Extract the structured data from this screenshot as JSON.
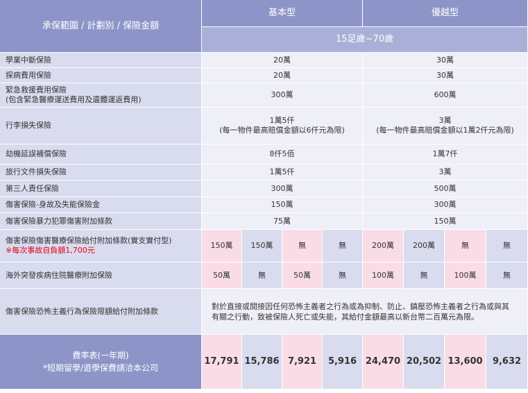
{
  "header": {
    "coverage_title": "承保範圍 / 計劃別 / 保險金額",
    "plan_basic": "基本型",
    "plan_premium": "優越型",
    "age_range": "15足歲~70歲"
  },
  "rows": [
    {
      "label": "學業中斷保險",
      "basic": "20萬",
      "premium": "30萬"
    },
    {
      "label": "探病費用保險",
      "basic": "20萬",
      "premium": "30萬"
    },
    {
      "label": "緊急救援費用保險",
      "label_sub": "(包含緊急醫療運送費用及遺體運返費用)",
      "basic": "300萬",
      "premium": "600萬"
    },
    {
      "label": "行李損失保險",
      "basic": "1萬5仟",
      "basic_sub": "(每一物件最高賠償金額以6仟元為限)",
      "premium": "3萬",
      "premium_sub": "(每一物件最高賠償金額以1萬2仟元為限)"
    },
    {
      "label": "劫機延誤補償保險",
      "basic": "8仟5佰",
      "premium": "1萬7仟"
    },
    {
      "label": "旅行文件損失保險",
      "basic": "1萬5仟",
      "premium": "3萬"
    },
    {
      "label": "第三人責任保險",
      "basic": "300萬",
      "premium": "500萬"
    },
    {
      "label": "傷害保險-身故及失能保險金",
      "basic": "150萬",
      "premium": "300萬"
    },
    {
      "label": "傷害保險暴力犯罪傷害附加條款",
      "basic": "75萬",
      "premium": "150萬"
    }
  ],
  "medical": {
    "label": "傷害保險傷害醫療保險給付附加條款(實支實付型)",
    "note": "※每次事故自負額1,700元",
    "values": [
      "150萬",
      "150萬",
      "無",
      "無",
      "200萬",
      "200萬",
      "無",
      "無"
    ]
  },
  "overseas": {
    "label": "海外突發疾病住院醫療附加保險",
    "values": [
      "50萬",
      "無",
      "50萬",
      "無",
      "100萬",
      "無",
      "100萬",
      "無"
    ]
  },
  "terror": {
    "label": "傷害保險恐怖主義行為保險限額給付附加條款",
    "text_line1": "對於直接或間接因任何恐怖主義者之行為或為抑制、防止、鎮壓恐怖主義者之行為或與其",
    "text_line2": "有關之行動，致被保險人死亡或失能，其給付金額最高以新台幣二百萬元為限。"
  },
  "fees": {
    "label": "費率表(一年期)",
    "note": "*短期留學/遊學保費請洽本公司",
    "values": [
      "17,791",
      "15,786",
      "7,921",
      "5,916",
      "24,470",
      "20,502",
      "13,600",
      "9,632"
    ]
  },
  "colors": {
    "header": "#8d95c8",
    "label_bg": "#d8dcee",
    "value_bg": "#eeeff7",
    "pink": "#fadce7",
    "note_red": "#e60012"
  }
}
